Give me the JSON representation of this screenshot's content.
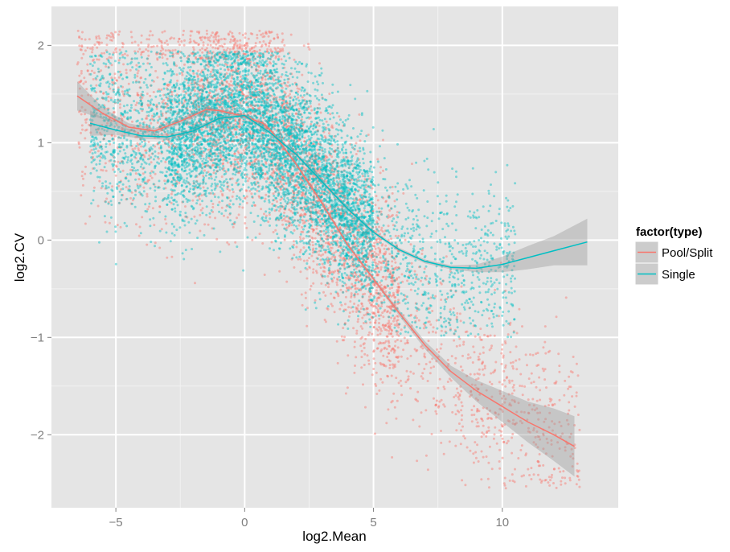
{
  "chart_data": {
    "type": "scatter",
    "title": "",
    "xlabel": "log2.Mean",
    "ylabel": "log2.CV",
    "xlim": [
      -7.5,
      14.5
    ],
    "ylim": [
      -2.75,
      2.4
    ],
    "x_ticks": [
      {
        "value": -5,
        "label": "−5"
      },
      {
        "value": 0,
        "label": "0"
      },
      {
        "value": 5,
        "label": "5"
      },
      {
        "value": 10,
        "label": "10"
      }
    ],
    "y_ticks": [
      {
        "value": 2,
        "label": "2"
      },
      {
        "value": 1,
        "label": "1"
      },
      {
        "value": 0,
        "label": "0"
      },
      {
        "value": -1,
        "label": "−1"
      },
      {
        "value": -2,
        "label": "−2"
      }
    ],
    "grid": true,
    "background_color": "#e5e5e5",
    "grid_major_color": "#ffffff",
    "grid_minor_color": "#f2f2f2",
    "legend": {
      "title": "factor(type)",
      "placement": "right"
    },
    "series": [
      {
        "name": "Pool/Split",
        "color": "#f8766d",
        "smooth": {
          "x": [
            -6.5,
            -5.5,
            -4.5,
            -3.5,
            -2.5,
            -1.5,
            -1.0,
            0.0,
            0.7,
            1.0,
            2.0,
            3.0,
            4.0,
            5.0,
            6.0,
            7.0,
            8.0,
            9.0,
            10.0,
            11.0,
            12.0,
            12.8
          ],
          "y": [
            1.48,
            1.3,
            1.16,
            1.12,
            1.22,
            1.34,
            1.33,
            1.27,
            1.2,
            1.13,
            0.78,
            0.38,
            -0.05,
            -0.4,
            -0.75,
            -1.08,
            -1.35,
            -1.55,
            -1.71,
            -1.87,
            -2.0,
            -2.12
          ],
          "ci_lower": [
            1.33,
            1.24,
            1.12,
            1.09,
            1.19,
            1.31,
            1.31,
            1.25,
            1.18,
            1.11,
            0.76,
            0.36,
            -0.07,
            -0.42,
            -0.78,
            -1.12,
            -1.41,
            -1.66,
            -1.87,
            -2.08,
            -2.27,
            -2.43
          ],
          "ci_upper": [
            1.63,
            1.36,
            1.2,
            1.15,
            1.25,
            1.37,
            1.35,
            1.29,
            1.22,
            1.15,
            0.8,
            0.4,
            -0.03,
            -0.38,
            -0.72,
            -1.04,
            -1.29,
            -1.44,
            -1.55,
            -1.66,
            -1.73,
            -1.81
          ]
        },
        "points": {
          "count": 4200,
          "description": "dense cloud roughly following the trend, spreading from log2.Mean -6.5 to 13, log2.CV -2.5 to 2.15"
        }
      },
      {
        "name": "Single",
        "color": "#00bfc4",
        "smooth": {
          "x": [
            -6.0,
            -5.0,
            -4.0,
            -3.0,
            -2.0,
            -1.0,
            0.0,
            1.0,
            2.0,
            3.0,
            4.0,
            5.0,
            6.0,
            7.0,
            8.0,
            9.0,
            10.0,
            11.0,
            12.0,
            13.3
          ],
          "y": [
            1.2,
            1.13,
            1.07,
            1.06,
            1.12,
            1.25,
            1.28,
            1.1,
            0.88,
            0.6,
            0.32,
            0.08,
            -0.1,
            -0.22,
            -0.28,
            -0.29,
            -0.25,
            -0.18,
            -0.11,
            -0.02
          ],
          "ci_lower": [
            1.07,
            1.08,
            1.04,
            1.03,
            1.1,
            1.23,
            1.26,
            1.08,
            0.86,
            0.58,
            0.3,
            0.06,
            -0.12,
            -0.24,
            -0.3,
            -0.33,
            -0.33,
            -0.3,
            -0.26,
            -0.26
          ],
          "ci_upper": [
            1.33,
            1.18,
            1.1,
            1.09,
            1.14,
            1.27,
            1.3,
            1.12,
            0.9,
            0.62,
            0.34,
            0.1,
            -0.08,
            -0.2,
            -0.26,
            -0.25,
            -0.17,
            -0.06,
            0.04,
            0.22
          ]
        },
        "points": {
          "count": 6500,
          "description": "dense cloud concentrated between log2.Mean -3 and 8, log2.CV -0.9 to 1.95"
        }
      }
    ]
  }
}
